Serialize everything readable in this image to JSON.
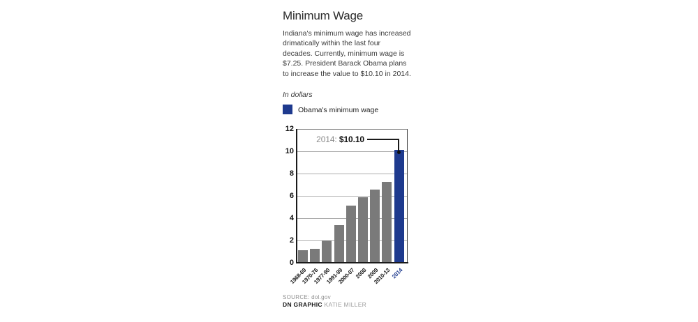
{
  "title": "Minimum Wage",
  "description": "Indiana's minimum wage has increased drimatically within the last four decades. Currently, minimum wage is $7.25. President Barack Obama plans to increase the value to $10.10 in 2014.",
  "unit_note": "In dollars",
  "legend": {
    "label": "Obama's minimum wage",
    "color": "#1e3a8e"
  },
  "annotation": {
    "prefix": "2014:",
    "value": "$10.10"
  },
  "source": {
    "source_label": "SOURCE: dol.gov",
    "credit_bold": "DN GRAPHIC",
    "credit_name": "KATIE MILLER"
  },
  "colors": {
    "bar_gray": "#7a7a7a",
    "bar_highlight": "#1e3a8e",
    "axis": "#1a1a1a",
    "gridline": "#adadad"
  },
  "chart_data": {
    "type": "bar",
    "title": "Minimum Wage",
    "ylabel": "In dollars",
    "categories": [
      "1968-69",
      "1970-76",
      "1977-90",
      "1991-99",
      "2000-07",
      "2008",
      "2009",
      "2010-13",
      "2014"
    ],
    "values": [
      1.15,
      1.25,
      2.0,
      3.35,
      5.15,
      5.85,
      6.55,
      7.25,
      10.1
    ],
    "highlight_index": 8,
    "highlight_label": "2014: $10.10",
    "bar_color": "#7a7a7a",
    "highlight_color": "#1e3a8e",
    "ylim": [
      0,
      12
    ],
    "yticks": [
      0,
      2,
      4,
      6,
      8,
      10,
      12
    ],
    "grid": true,
    "legend_entries": [
      "Obama's minimum wage"
    ],
    "legend_position": "top"
  }
}
